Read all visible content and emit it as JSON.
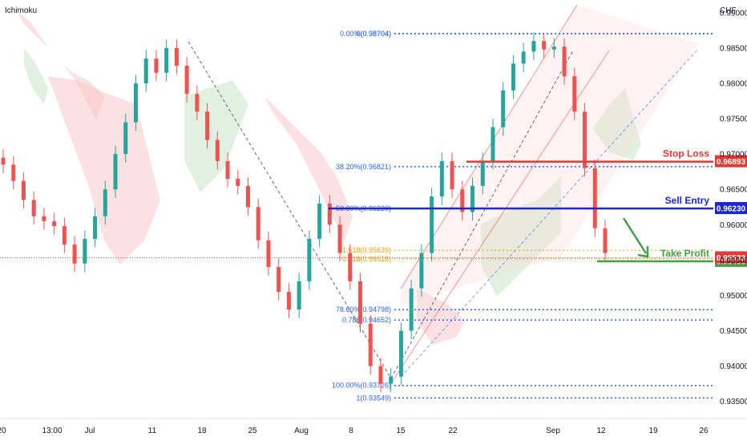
{
  "indicator_label": "Ichimoku",
  "currency": "CHF",
  "chart_data": {
    "type": "candlestick",
    "ylim": [
      0.9328,
      0.9918
    ],
    "y_ticks": [
      "0.99000",
      "0.98500",
      "0.98000",
      "0.97500",
      "0.97000",
      "0.96500",
      "0.96000",
      "0.95500",
      "0.95000",
      "0.94500",
      "0.94000",
      "0.93500"
    ],
    "y_tick_values": [
      0.99,
      0.985,
      0.98,
      0.975,
      0.97,
      0.965,
      0.96,
      0.955,
      0.95,
      0.945,
      0.94,
      0.935
    ],
    "x_ticks": [
      "20",
      "13:00",
      "Jul",
      "11",
      "18",
      "25",
      "Aug",
      "8",
      "15",
      "22",
      "Sep",
      "12",
      "19",
      "26"
    ],
    "x_tick_keys": [
      "Jun20",
      "Jun20_13",
      "Jul",
      "Jul11",
      "Jul18",
      "Jul25",
      "Aug",
      "Aug8",
      "Aug15",
      "Aug22",
      "Sep",
      "Sep12",
      "Sep19",
      "Sep26"
    ],
    "approx_closes": [
      0.9685,
      0.9662,
      0.9635,
      0.9612,
      0.9605,
      0.9598,
      0.9572,
      0.9545,
      0.958,
      0.9612,
      0.965,
      0.97,
      0.9745,
      0.98,
      0.9835,
      0.9815,
      0.985,
      0.9825,
      0.9785,
      0.976,
      0.972,
      0.969,
      0.9665,
      0.9655,
      0.9625,
      0.9578,
      0.954,
      0.9505,
      0.948,
      0.952,
      0.958,
      0.963,
      0.96,
      0.956,
      0.952,
      0.946,
      0.94,
      0.9375,
      0.9385,
      0.945,
      0.951,
      0.956,
      0.964,
      0.969,
      0.965,
      0.9618,
      0.9655,
      0.969,
      0.9738,
      0.979,
      0.9828,
      0.9845,
      0.986,
      0.9848,
      0.9852,
      0.981,
      0.976,
      0.968,
      0.9595,
      0.956
    ],
    "levels": [
      {
        "label": "Stop Loss",
        "value": "0.96893",
        "color": "#e53935"
      },
      {
        "label": "Sell Entry",
        "value": "0.96230",
        "color": "#1e27d6"
      },
      {
        "label": "Take Profit",
        "value": "0.95483",
        "color": "#43a047"
      }
    ],
    "current_price": "0.95533",
    "fib_levels": [
      {
        "label": "0.00%(0.98704)",
        "value": 0.98704,
        "color": "#2962ff"
      },
      {
        "label": "0(0.98704)",
        "value": 0.98704,
        "color": "#2962ff"
      },
      {
        "label": "38.20%(0.96821)",
        "value": 0.96821,
        "color": "#2962ff"
      },
      {
        "label": "50.00%(0.96230)",
        "value": 0.9623,
        "color": "#2962ff"
      },
      {
        "label": "1.618(0.95639)",
        "value": 0.95639,
        "color": "#e6a100"
      },
      {
        "label": "0.618(0.95518)",
        "value": 0.95518,
        "color": "#e6a100"
      },
      {
        "label": "78.60%(0.94798)",
        "value": 0.94798,
        "color": "#2962ff"
      },
      {
        "label": "0.786(0.94652)",
        "value": 0.94652,
        "color": "#2962ff"
      },
      {
        "label": "100.00%(0.93726)",
        "value": 0.93726,
        "color": "#2962ff"
      },
      {
        "label": "1(0.93549)",
        "value": 0.93549,
        "color": "#2962ff"
      }
    ],
    "colors": {
      "up": "#26a69a",
      "down": "#ef5350",
      "cloud_red": "#f8c9c8",
      "cloud_green": "#c8e6c9",
      "channel": "#ef5350"
    }
  }
}
